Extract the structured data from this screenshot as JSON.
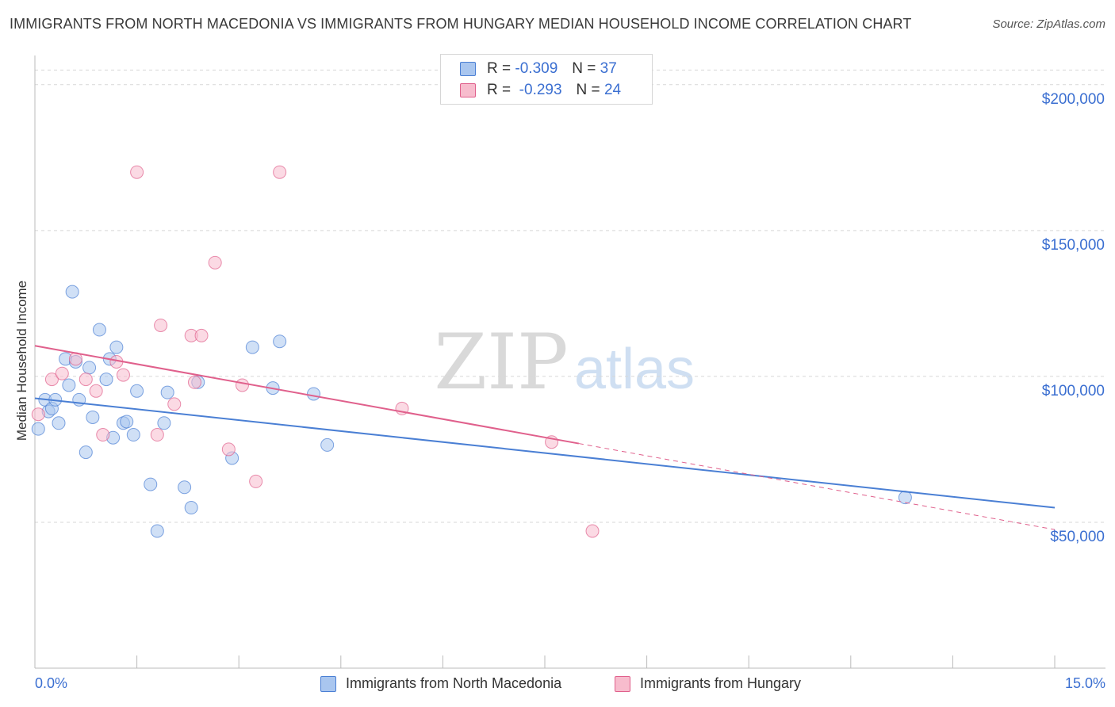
{
  "chart_data": {
    "type": "scatter",
    "title": "IMMIGRANTS FROM NORTH MACEDONIA VS IMMIGRANTS FROM HUNGARY MEDIAN HOUSEHOLD INCOME CORRELATION CHART",
    "source": "Source: ZipAtlas.com",
    "xlabel": "",
    "ylabel": "Median Household Income",
    "xlim": [
      0,
      15
    ],
    "ylim": [
      0,
      210000
    ],
    "x_tick_labels": [
      "0.0%",
      "15.0%"
    ],
    "y_ticks": [
      {
        "value": 50000,
        "label": "$50,000"
      },
      {
        "value": 100000,
        "label": "$100,000"
      },
      {
        "value": 150000,
        "label": "$150,000"
      },
      {
        "value": 200000,
        "label": "$200,000"
      }
    ],
    "watermark": {
      "part1": "ZIP",
      "part2": "atlas"
    },
    "series": [
      {
        "name": "Immigrants from North Macedonia",
        "color": "#4a7fd4",
        "fill": "#a9c6ef",
        "stats": {
          "r_label": "R = ",
          "r": "-0.309",
          "n_label": "N = ",
          "n": "37"
        },
        "trend": {
          "x1": 0.0,
          "y1": 92500,
          "x2": 15.0,
          "y2": 55000
        },
        "points": [
          [
            0.05,
            82000
          ],
          [
            0.15,
            92000
          ],
          [
            0.2,
            88000
          ],
          [
            0.25,
            89000
          ],
          [
            0.3,
            92000
          ],
          [
            0.35,
            84000
          ],
          [
            0.45,
            106000
          ],
          [
            0.5,
            97000
          ],
          [
            0.55,
            129000
          ],
          [
            0.6,
            105000
          ],
          [
            0.65,
            92000
          ],
          [
            0.75,
            74000
          ],
          [
            0.8,
            103000
          ],
          [
            0.85,
            86000
          ],
          [
            0.95,
            116000
          ],
          [
            1.05,
            99000
          ],
          [
            1.1,
            106000
          ],
          [
            1.15,
            79000
          ],
          [
            1.2,
            110000
          ],
          [
            1.3,
            84000
          ],
          [
            1.35,
            84500
          ],
          [
            1.45,
            80000
          ],
          [
            1.5,
            95000
          ],
          [
            1.7,
            63000
          ],
          [
            1.8,
            47000
          ],
          [
            1.9,
            84000
          ],
          [
            1.95,
            94500
          ],
          [
            2.2,
            62000
          ],
          [
            2.3,
            55000
          ],
          [
            2.4,
            98000
          ],
          [
            2.9,
            72000
          ],
          [
            3.2,
            110000
          ],
          [
            3.5,
            96000
          ],
          [
            3.6,
            112000
          ],
          [
            4.1,
            94000
          ],
          [
            4.3,
            76500
          ],
          [
            12.8,
            58500
          ]
        ]
      },
      {
        "name": "Immigrants from Hungary",
        "color": "#e0608c",
        "fill": "#f7bccd",
        "stats": {
          "r_label": "R = ",
          "r": "-0.293",
          "n_label": "N = ",
          "n": "24"
        },
        "trend": {
          "x1": 0.0,
          "y1": 110500,
          "x2": 8.0,
          "y2": 77000,
          "dash_x2": 15.0,
          "dash_y2": 47500
        },
        "points": [
          [
            0.05,
            87000
          ],
          [
            0.25,
            99000
          ],
          [
            0.4,
            101000
          ],
          [
            0.6,
            106000
          ],
          [
            0.75,
            99000
          ],
          [
            0.9,
            95000
          ],
          [
            1.0,
            80000
          ],
          [
            1.2,
            105000
          ],
          [
            1.3,
            100500
          ],
          [
            1.5,
            170000
          ],
          [
            1.8,
            80000
          ],
          [
            1.85,
            117500
          ],
          [
            2.05,
            90500
          ],
          [
            2.3,
            114000
          ],
          [
            2.35,
            98000
          ],
          [
            2.45,
            114000
          ],
          [
            2.65,
            139000
          ],
          [
            2.85,
            75000
          ],
          [
            3.05,
            97000
          ],
          [
            3.25,
            64000
          ],
          [
            3.6,
            170000
          ],
          [
            5.4,
            89000
          ],
          [
            7.6,
            77500
          ],
          [
            8.2,
            47000
          ]
        ]
      }
    ]
  }
}
